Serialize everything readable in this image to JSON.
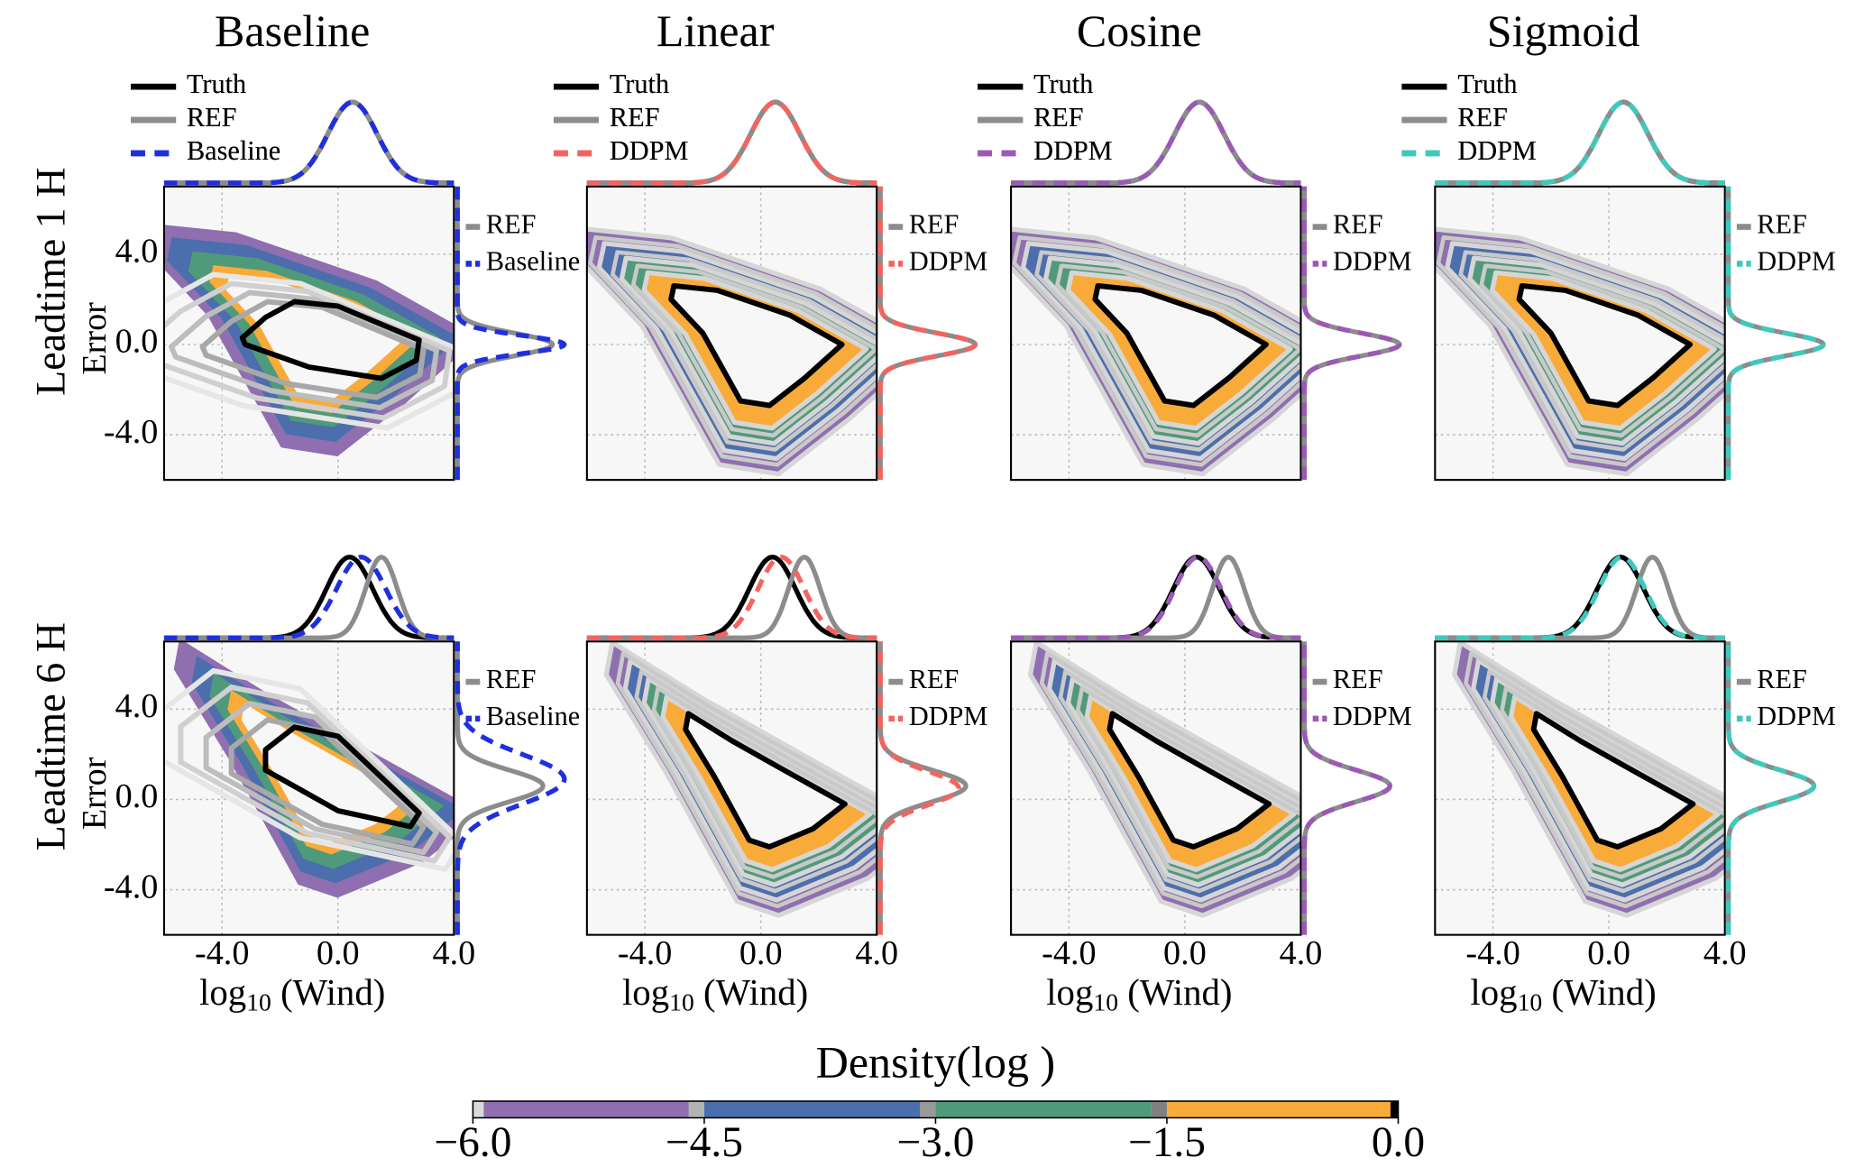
{
  "chart_data": [
    {
      "type": "density",
      "title": "Baseline",
      "row_label": "Leadtime 1 H",
      "ylabel": "Error",
      "xlim": [
        -6,
        4
      ],
      "ylim": [
        -6,
        7
      ],
      "grid": {
        "x": [
          -4,
          0,
          4
        ],
        "y": [
          -4,
          0,
          4
        ]
      },
      "yticks": [
        {
          "value": 4,
          "label": "4.0"
        },
        {
          "value": 0,
          "label": "0.0"
        },
        {
          "value": -4,
          "label": "-4.0"
        }
      ],
      "series": [
        {
          "name": "Truth",
          "color": "#000000"
        },
        {
          "name": "REF",
          "color": "#8c8c8c"
        },
        {
          "name": "Baseline",
          "color": "#1f2fe0"
        }
      ]
    },
    {
      "type": "density",
      "title": "Linear",
      "xlim": [
        -6,
        4
      ],
      "ylim": [
        -6,
        7
      ],
      "grid": {
        "x": [
          -4,
          0,
          4
        ],
        "y": [
          -4,
          0,
          4
        ]
      },
      "series": [
        {
          "name": "Truth",
          "color": "#000000"
        },
        {
          "name": "REF",
          "color": "#8c8c8c"
        },
        {
          "name": "DDPM",
          "color": "#f4645f"
        }
      ]
    },
    {
      "type": "density",
      "title": "Cosine",
      "xlim": [
        -6,
        4
      ],
      "ylim": [
        -6,
        7
      ],
      "grid": {
        "x": [
          -4,
          0,
          4
        ],
        "y": [
          -4,
          0,
          4
        ]
      },
      "series": [
        {
          "name": "Truth",
          "color": "#000000"
        },
        {
          "name": "REF",
          "color": "#8c8c8c"
        },
        {
          "name": "DDPM",
          "color": "#9b59b6"
        }
      ]
    },
    {
      "type": "density",
      "title": "Sigmoid",
      "xlim": [
        -6,
        4
      ],
      "ylim": [
        -6,
        7
      ],
      "grid": {
        "x": [
          -4,
          0,
          4
        ],
        "y": [
          -4,
          0,
          4
        ]
      },
      "series": [
        {
          "name": "Truth",
          "color": "#000000"
        },
        {
          "name": "REF",
          "color": "#8c8c8c"
        },
        {
          "name": "DDPM",
          "color": "#3ec9bd"
        }
      ]
    },
    {
      "type": "density",
      "row_label": "Leadtime 6 H",
      "ylabel": "Error",
      "xlabel": {
        "base": "log",
        "sub": "10",
        "rest": " (Wind)"
      },
      "xlim": [
        -6,
        4
      ],
      "ylim": [
        -6,
        7
      ],
      "grid": {
        "x": [
          -4,
          0,
          4
        ],
        "y": [
          -4,
          0,
          4
        ]
      },
      "xticks": [
        {
          "value": -4,
          "label": "-4.0"
        },
        {
          "value": 0,
          "label": "0.0"
        },
        {
          "value": 4,
          "label": "4.0"
        }
      ],
      "yticks": [
        {
          "value": 4,
          "label": "4.0"
        },
        {
          "value": 0,
          "label": "0.0"
        },
        {
          "value": -4,
          "label": "-4.0"
        }
      ],
      "series": [
        {
          "name": "Truth",
          "color": "#000000"
        },
        {
          "name": "REF",
          "color": "#8c8c8c"
        },
        {
          "name": "Baseline",
          "color": "#1f2fe0"
        }
      ]
    },
    {
      "type": "density",
      "xlabel": {
        "base": "log",
        "sub": "10",
        "rest": " (Wind)"
      },
      "xlim": [
        -6,
        4
      ],
      "ylim": [
        -6,
        7
      ],
      "grid": {
        "x": [
          -4,
          0,
          4
        ],
        "y": [
          -4,
          0,
          4
        ]
      },
      "xticks": [
        {
          "value": -4,
          "label": "-4.0"
        },
        {
          "value": 0,
          "label": "0.0"
        },
        {
          "value": 4,
          "label": "4.0"
        }
      ],
      "series": [
        {
          "name": "Truth",
          "color": "#000000"
        },
        {
          "name": "REF",
          "color": "#8c8c8c"
        },
        {
          "name": "DDPM",
          "color": "#f4645f"
        }
      ]
    },
    {
      "type": "density",
      "xlabel": {
        "base": "log",
        "sub": "10",
        "rest": " (Wind)"
      },
      "xlim": [
        -6,
        4
      ],
      "ylim": [
        -6,
        7
      ],
      "grid": {
        "x": [
          -4,
          0,
          4
        ],
        "y": [
          -4,
          0,
          4
        ]
      },
      "xticks": [
        {
          "value": -4,
          "label": "-4.0"
        },
        {
          "value": 0,
          "label": "0.0"
        },
        {
          "value": 4,
          "label": "4.0"
        }
      ],
      "series": [
        {
          "name": "Truth",
          "color": "#000000"
        },
        {
          "name": "REF",
          "color": "#8c8c8c"
        },
        {
          "name": "DDPM",
          "color": "#9b59b6"
        }
      ]
    },
    {
      "type": "density",
      "xlabel": {
        "base": "log",
        "sub": "10",
        "rest": " (Wind)"
      },
      "xlim": [
        -6,
        4
      ],
      "ylim": [
        -6,
        7
      ],
      "grid": {
        "x": [
          -4,
          0,
          4
        ],
        "y": [
          -4,
          0,
          4
        ]
      },
      "xticks": [
        {
          "value": -4,
          "label": "-4.0"
        },
        {
          "value": 0,
          "label": "0.0"
        },
        {
          "value": 4,
          "label": "4.0"
        }
      ],
      "series": [
        {
          "name": "Truth",
          "color": "#000000"
        },
        {
          "name": "REF",
          "color": "#8c8c8c"
        },
        {
          "name": "DDPM",
          "color": "#3ec9bd"
        }
      ]
    },
    {
      "type": "colorbar",
      "title": "Density(log )",
      "xlim": [
        -6,
        0
      ],
      "bins": [
        -6,
        -5.93,
        -4.6,
        -4.5,
        -3.1,
        -3.0,
        -1.6,
        -1.5,
        -0.05,
        0
      ],
      "colors": [
        "#d9d9d9",
        "#8f6fb0",
        "#b3b3b3",
        "#4c6eac",
        "#999999",
        "#4f9a7a",
        "#808080",
        "#f9ab3a",
        "#000000"
      ],
      "xticks": [
        {
          "value": -6,
          "label": "−6.0"
        },
        {
          "value": -4.5,
          "label": "−4.5"
        },
        {
          "value": -3,
          "label": "−3.0"
        },
        {
          "value": -1.5,
          "label": "−1.5"
        },
        {
          "value": 0,
          "label": "0.0"
        }
      ]
    }
  ]
}
